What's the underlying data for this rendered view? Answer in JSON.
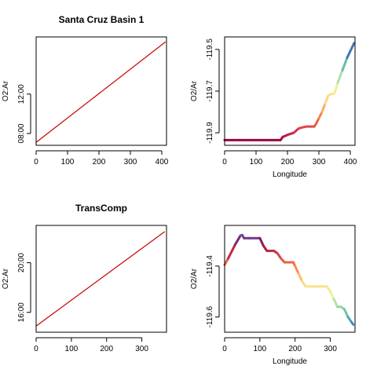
{
  "chart_data": [
    {
      "id": "p1",
      "type": "line",
      "title": "Santa Cruz Basin 1",
      "xlabel": "",
      "ylabel": "O2:Ar",
      "xlim": [
        0,
        415
      ],
      "ylim": [
        6.8,
        17.8
      ],
      "xticks": [
        0,
        100,
        200,
        300,
        400
      ],
      "xtick_labels": [
        "0",
        "100",
        "200",
        "300",
        "400"
      ],
      "yticks": [
        8,
        12
      ],
      "ytick_labels": [
        "08:00",
        "12:00"
      ],
      "series": [
        {
          "x": [
            0,
            412
          ],
          "y": [
            7.1,
            17.3
          ],
          "color": "#cc0000"
        }
      ]
    },
    {
      "id": "p2",
      "type": "line",
      "title": "",
      "xlabel": "Longitude",
      "ylabel": "O2/Ar",
      "xlim": [
        0,
        415
      ],
      "ylim": [
        -119.96,
        -119.44
      ],
      "xticks": [
        0,
        100,
        200,
        300,
        400
      ],
      "xtick_labels": [
        "0",
        "100",
        "200",
        "300",
        "400"
      ],
      "yticks": [
        -119.9,
        -119.7,
        -119.5
      ],
      "ytick_labels": [
        "-119.9",
        "-119.7",
        "-119.5"
      ],
      "series": [
        {
          "x": [
            0,
            25,
            50,
            100,
            150,
            178,
            185,
            200,
            220,
            235,
            245,
            260,
            270,
            285,
            290,
            300,
            310,
            320,
            330,
            340,
            350,
            360,
            375,
            390,
            412
          ],
          "y": [
            -119.935,
            -119.935,
            -119.935,
            -119.935,
            -119.935,
            -119.935,
            -119.92,
            -119.91,
            -119.9,
            -119.88,
            -119.875,
            -119.87,
            -119.87,
            -119.87,
            -119.86,
            -119.83,
            -119.8,
            -119.76,
            -119.72,
            -119.715,
            -119.71,
            -119.66,
            -119.6,
            -119.54,
            -119.47
          ],
          "colormap": [
            "#9e0142",
            "#d53e4f",
            "#f46d43",
            "#fdae61",
            "#fee08b",
            "#e6f598",
            "#abdda4",
            "#66c2a5",
            "#3288bd",
            "#5e4fa2"
          ]
        }
      ]
    },
    {
      "id": "p3",
      "type": "line",
      "title": "TransComp",
      "xlabel": "",
      "ylabel": "O2:Ar",
      "xlim": [
        0,
        370
      ],
      "ylim": [
        14.4,
        23.0
      ],
      "xticks": [
        0,
        100,
        200,
        300
      ],
      "xtick_labels": [
        "0",
        "100",
        "200",
        "300"
      ],
      "yticks": [
        16,
        20
      ],
      "ytick_labels": [
        "16:00",
        "20:00"
      ],
      "series": [
        {
          "x": [
            0,
            365
          ],
          "y": [
            14.9,
            22.5
          ],
          "color": "#cc0000"
        }
      ]
    },
    {
      "id": "p4",
      "type": "line",
      "title": "",
      "xlabel": "Longitude",
      "ylabel": "O2/Ar",
      "xlim": [
        0,
        370
      ],
      "ylim": [
        -119.66,
        -119.24
      ],
      "xticks": [
        0,
        100,
        200,
        300
      ],
      "xtick_labels": [
        "0",
        "100",
        "200",
        "300"
      ],
      "yticks": [
        -119.6,
        -119.4
      ],
      "ytick_labels": [
        "-119.6",
        "-119.4"
      ],
      "series": [
        {
          "x": [
            0,
            10,
            30,
            45,
            50,
            55,
            70,
            100,
            110,
            120,
            140,
            150,
            160,
            170,
            195,
            200,
            210,
            220,
            230,
            260,
            290,
            300,
            310,
            320,
            330,
            340,
            350,
            360,
            365
          ],
          "y": [
            -119.395,
            -119.37,
            -119.315,
            -119.28,
            -119.278,
            -119.29,
            -119.29,
            -119.29,
            -119.32,
            -119.34,
            -119.34,
            -119.35,
            -119.37,
            -119.385,
            -119.385,
            -119.4,
            -119.43,
            -119.46,
            -119.48,
            -119.48,
            -119.48,
            -119.5,
            -119.53,
            -119.56,
            -119.56,
            -119.57,
            -119.6,
            -119.62,
            -119.63
          ],
          "colormap": [
            "#3288bd",
            "#66c2a5",
            "#abdda4",
            "#e6f598",
            "#fee08b",
            "#fdae61",
            "#f46d43",
            "#d53e4f",
            "#9e0142",
            "#5e4fa2"
          ]
        }
      ]
    }
  ]
}
